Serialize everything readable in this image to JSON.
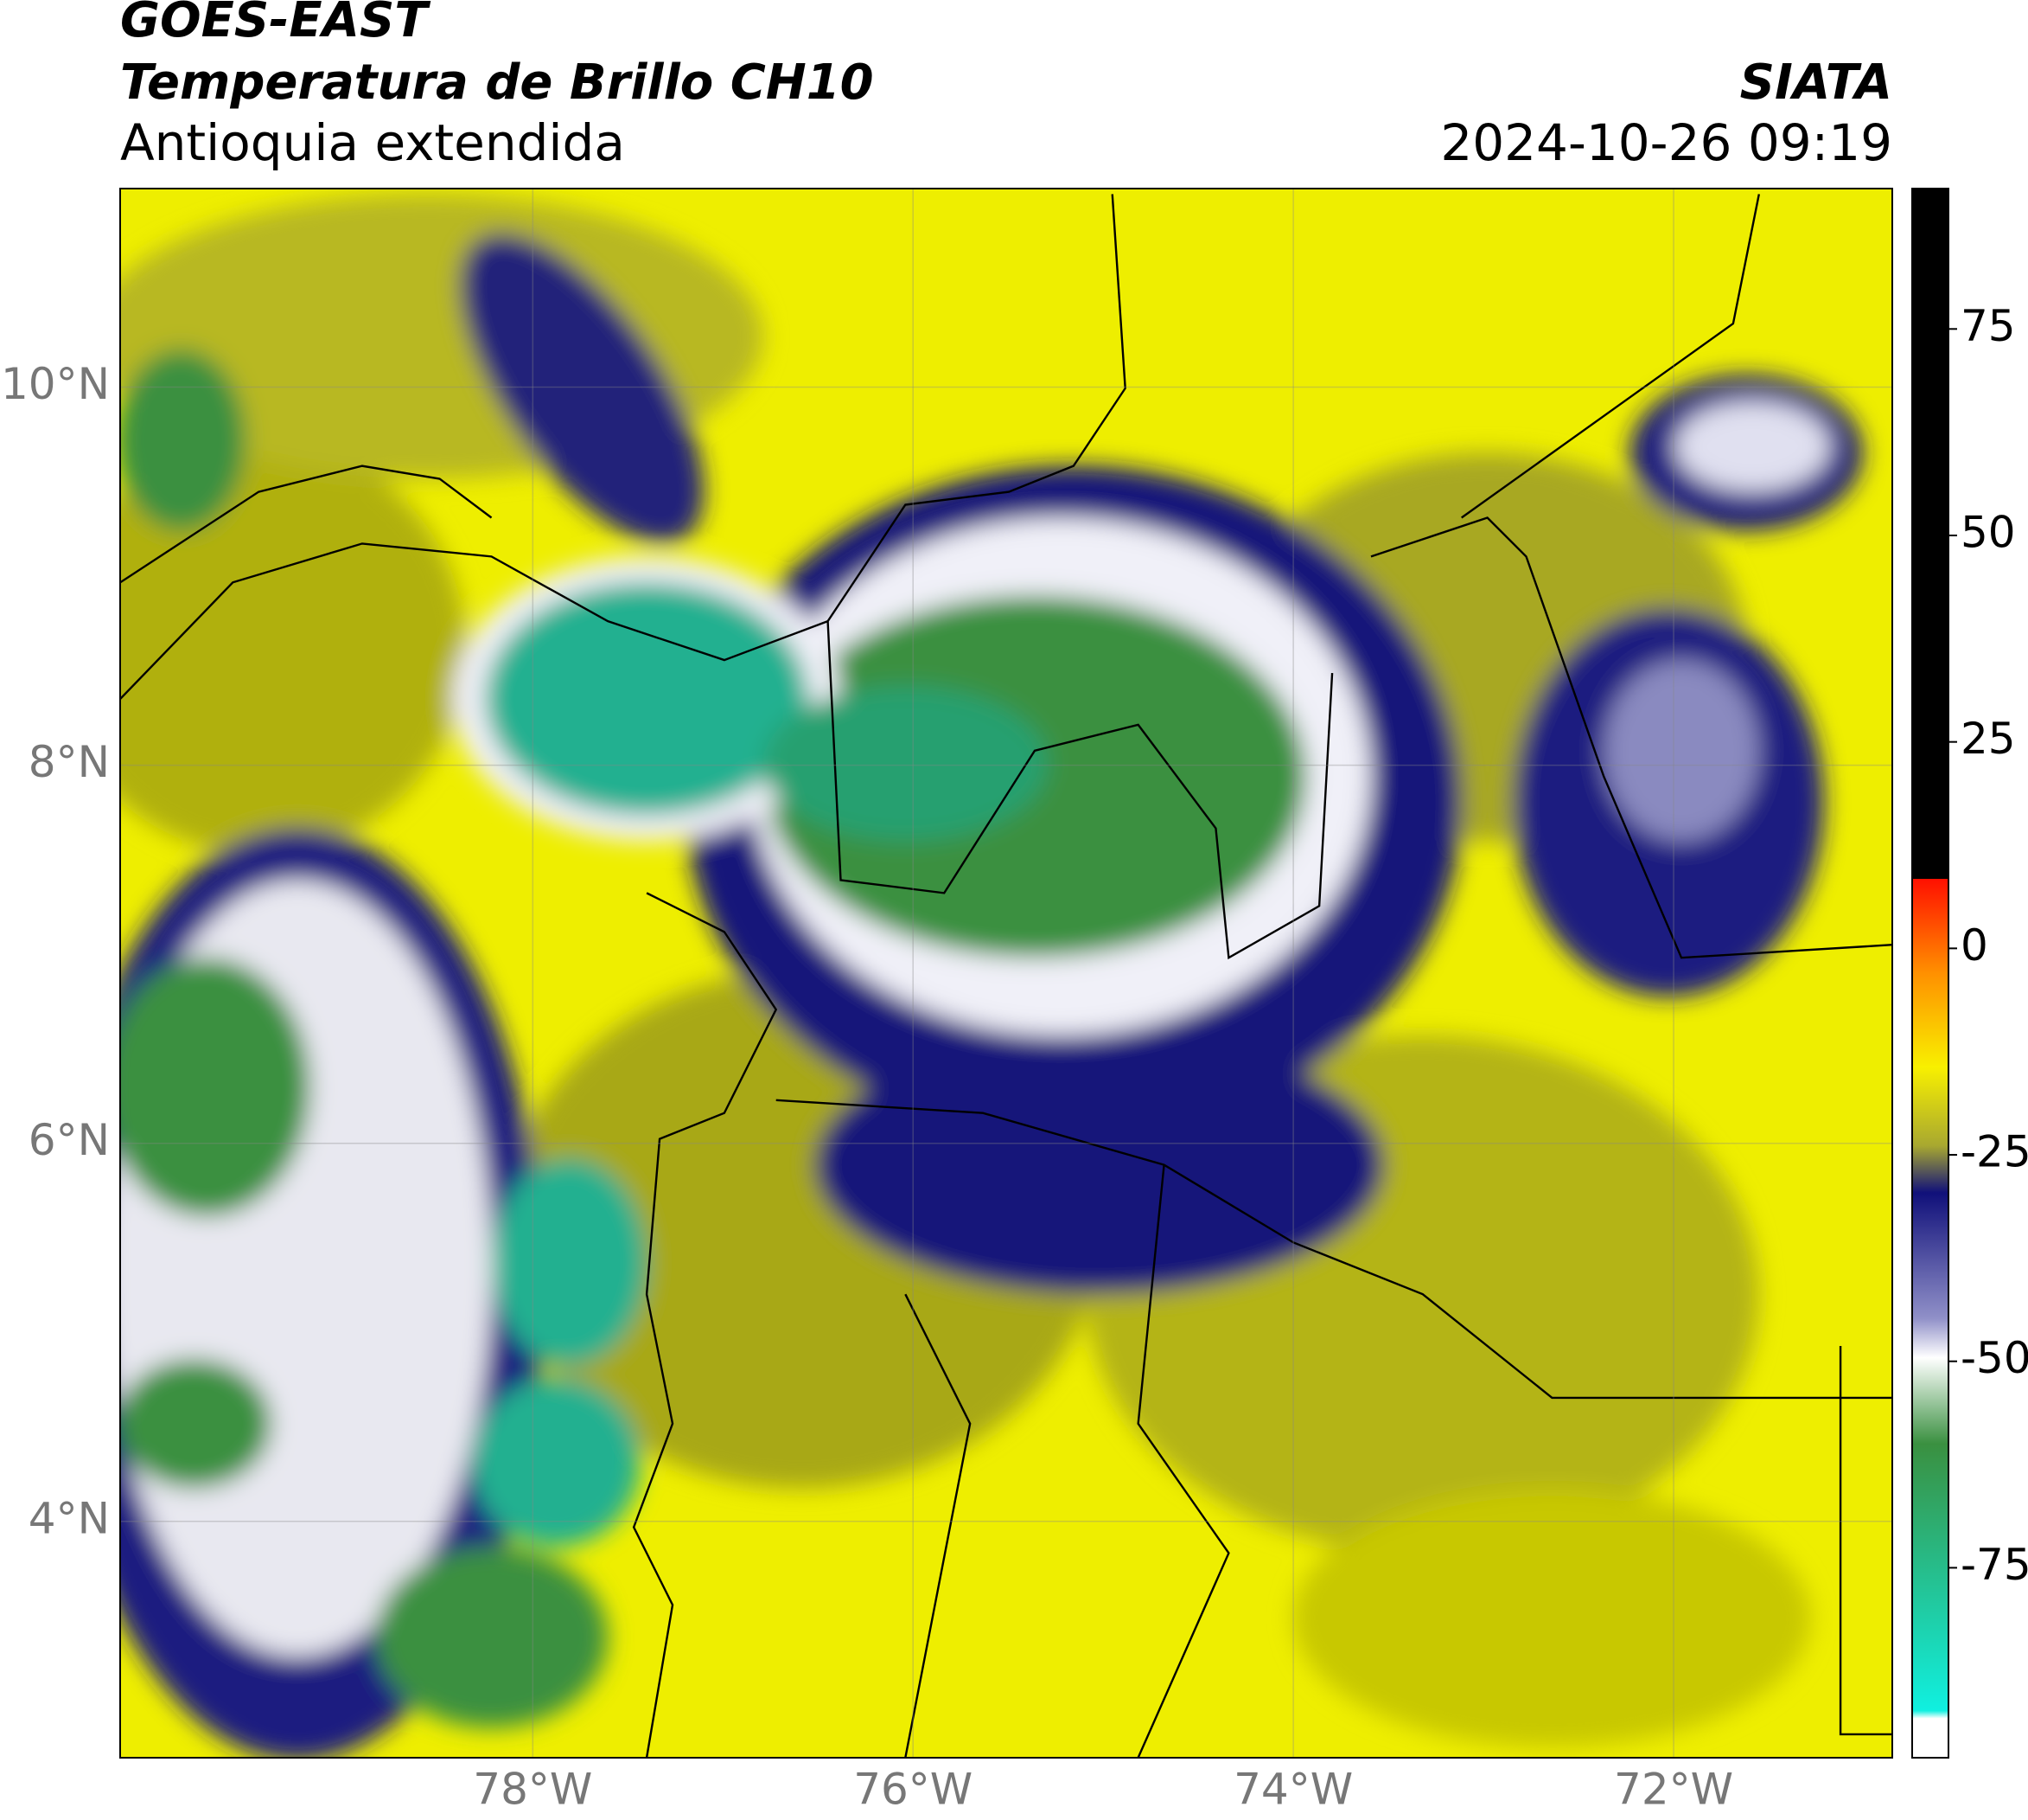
{
  "header": {
    "satellite": "GOES-EAST",
    "product": "Temperatura de Brillo CH10",
    "region": "Antioquia extendida",
    "organization": "SIATA",
    "datetime": "2024-10-26 09:19"
  },
  "map": {
    "xlim": [
      -80.17,
      -70.85
    ],
    "ylim": [
      2.75,
      11.05
    ],
    "xticks": [
      {
        "value": -78,
        "label": "78°W"
      },
      {
        "value": -76,
        "label": "76°W"
      },
      {
        "value": -74,
        "label": "74°W"
      },
      {
        "value": -72,
        "label": "72°W"
      }
    ],
    "yticks": [
      {
        "value": 10,
        "label": "10°N"
      },
      {
        "value": 8,
        "label": "8°N"
      },
      {
        "value": 6,
        "label": "6°N"
      },
      {
        "value": 4,
        "label": "4°N"
      }
    ],
    "grid": true
  },
  "colorbar": {
    "lim": [
      -98,
      92
    ],
    "ticks": [
      75,
      50,
      25,
      0,
      -25,
      -50,
      -75
    ]
  }
}
